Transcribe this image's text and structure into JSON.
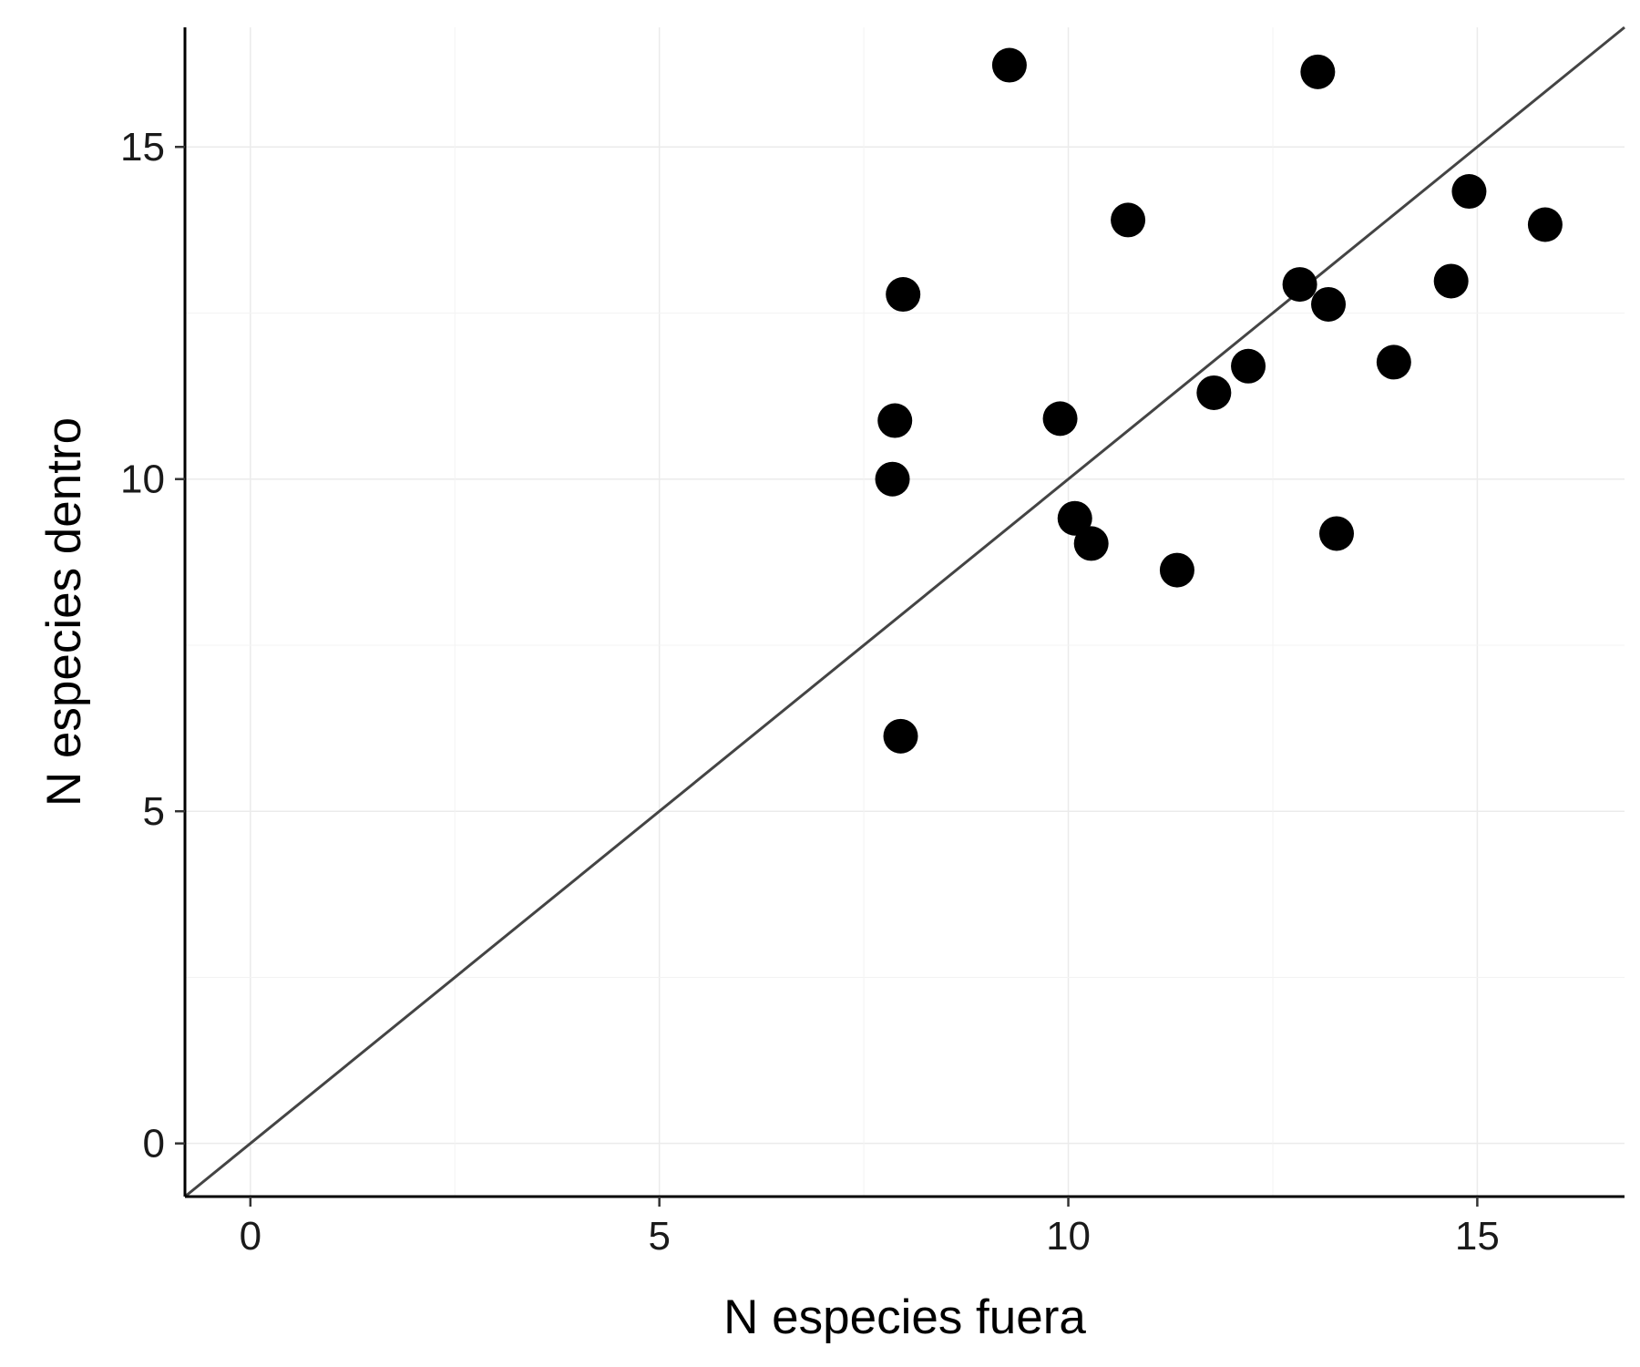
{
  "chart_data": {
    "type": "scatter",
    "title": "",
    "xlabel": "N especies fuera",
    "ylabel": "N especies dentro",
    "xlim": [
      -0.8,
      16.8
    ],
    "ylim": [
      -0.8,
      16.8
    ],
    "x_ticks": [
      0,
      5,
      10,
      15
    ],
    "x_tick_labels": [
      "0",
      "5",
      "10",
      "15"
    ],
    "y_ticks": [
      0,
      5,
      10,
      15
    ],
    "y_tick_labels": [
      "0",
      "5",
      "10",
      "15"
    ],
    "grid": true,
    "reference_line": {
      "type": "identity",
      "slope": 1,
      "intercept": 0,
      "color": "#444444"
    },
    "point_color": "#000000",
    "points": [
      {
        "x": 9.28,
        "y": 16.23
      },
      {
        "x": 13.05,
        "y": 16.13
      },
      {
        "x": 14.9,
        "y": 14.33
      },
      {
        "x": 15.83,
        "y": 13.83
      },
      {
        "x": 10.73,
        "y": 13.9
      },
      {
        "x": 7.98,
        "y": 12.78
      },
      {
        "x": 12.83,
        "y": 12.93
      },
      {
        "x": 14.68,
        "y": 12.98
      },
      {
        "x": 13.18,
        "y": 12.63
      },
      {
        "x": 12.2,
        "y": 11.7
      },
      {
        "x": 13.98,
        "y": 11.76
      },
      {
        "x": 11.78,
        "y": 11.3
      },
      {
        "x": 7.88,
        "y": 10.88
      },
      {
        "x": 9.9,
        "y": 10.91
      },
      {
        "x": 7.85,
        "y": 10.0
      },
      {
        "x": 10.08,
        "y": 9.41
      },
      {
        "x": 10.28,
        "y": 9.03
      },
      {
        "x": 13.28,
        "y": 9.18
      },
      {
        "x": 11.33,
        "y": 8.63
      },
      {
        "x": 7.95,
        "y": 6.13
      }
    ]
  }
}
